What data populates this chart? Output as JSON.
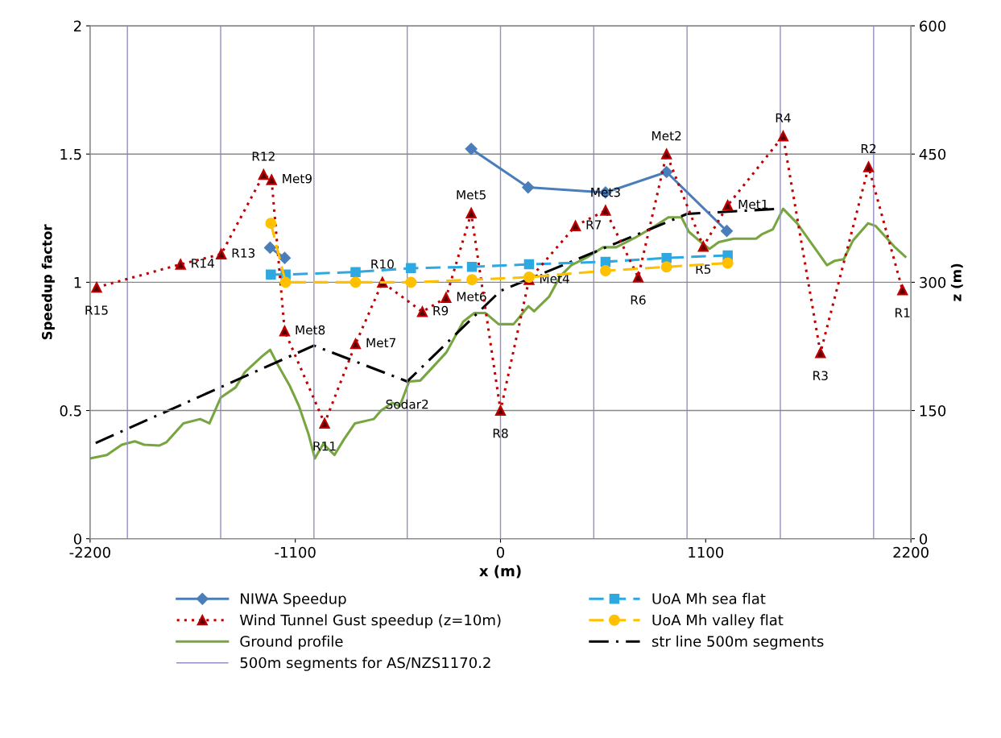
{
  "chart_data": {
    "type": "line",
    "xlabel": "x (m)",
    "ylabel": "Speedup factor",
    "y2label": "z (m)",
    "xlim": [
      -2200,
      2200
    ],
    "xticks": [
      -2200,
      -1100,
      0,
      1100,
      2200
    ],
    "ylim": [
      0,
      2
    ],
    "yticks": [
      0,
      0.5,
      1,
      1.5,
      2
    ],
    "y2lim": [
      0,
      600
    ],
    "y2ticks": [
      0,
      150,
      300,
      450,
      600
    ],
    "grid": "y",
    "legend": "bottom",
    "series": [
      {
        "name": "NIWA Speedup",
        "color": "#4a7ebb",
        "marker": "diamond",
        "line_style": "solid",
        "x": [
          -1235,
          -1157,
          -700,
          -157,
          148,
          563,
          890,
          1213
        ],
        "values": [
          1.135,
          1.095,
          null,
          1.52,
          1.37,
          1.35,
          1.43,
          1.2
        ]
      },
      {
        "name": "UoA Mh sea flat",
        "color": "#2ea8e0",
        "marker": "square",
        "line_style": "dashed",
        "x": [
          -1231,
          -1152,
          -777,
          -480,
          -153,
          153,
          563,
          890,
          1218
        ],
        "values": [
          1.03,
          1.03,
          1.04,
          1.055,
          1.06,
          1.07,
          1.08,
          1.095,
          1.105
        ]
      },
      {
        "name": "Wind Tunnel Gust speedup (z=10m)",
        "color": "#c00000",
        "marker": "triangle",
        "line_style": "dotted",
        "x": [
          -2165,
          -1715,
          -1497,
          -1270,
          -1227,
          -1157,
          -943,
          -777,
          -633,
          -419,
          -292,
          -157,
          0,
          153,
          402,
          563,
          738,
          890,
          1087,
          1218,
          1515,
          1715,
          1973,
          2155
        ],
        "values": [
          0.98,
          1.07,
          1.11,
          1.42,
          1.4,
          0.81,
          0.45,
          0.76,
          1.0,
          0.885,
          0.94,
          1.27,
          0.5,
          1.01,
          1.22,
          1.28,
          1.02,
          1.5,
          1.14,
          1.3,
          1.57,
          0.725,
          1.45,
          0.97
        ]
      },
      {
        "name": "UoA Mh valley flat",
        "color": "#ffc000",
        "marker": "circle",
        "line_style": "dashed",
        "x": [
          -1231,
          -1152,
          -777,
          -480,
          -153,
          153,
          563,
          890,
          1218
        ],
        "values": [
          1.23,
          1.0,
          1.0,
          1.0,
          1.01,
          1.02,
          1.045,
          1.06,
          1.075
        ]
      },
      {
        "name": "Ground profile",
        "color": "#77a640",
        "marker": "none",
        "line_style": "solid",
        "axis": "y2",
        "x": [
          -2200,
          -2110,
          -2030,
          -1960,
          -1910,
          -1830,
          -1790,
          -1700,
          -1610,
          -1560,
          -1500,
          -1420,
          -1370,
          -1280,
          -1235,
          -1190,
          -1130,
          -1080,
          -1030,
          -995,
          -950,
          -890,
          -840,
          -780,
          -680,
          -640,
          -580,
          -540,
          -490,
          -430,
          -290,
          -200,
          -140,
          -80,
          -10,
          70,
          150,
          180,
          260,
          320,
          380,
          470,
          550,
          620,
          720,
          830,
          900,
          970,
          1010,
          1080,
          1120,
          1170,
          1250,
          1370,
          1400,
          1460,
          1515,
          1590,
          1750,
          1790,
          1840,
          1890,
          1970,
          2010,
          2110,
          2170
        ],
        "values": [
          94,
          98,
          110,
          114,
          110,
          109,
          113,
          135,
          140,
          135,
          165,
          177,
          195,
          213,
          221,
          202,
          179,
          155,
          123,
          94,
          111,
          98,
          116,
          135,
          140,
          150,
          159,
          155,
          184,
          185,
          218,
          254,
          264,
          264,
          251,
          251,
          272,
          266,
          283,
          307,
          320,
          330,
          341,
          341,
          352,
          366,
          376,
          376,
          359,
          346,
          339,
          347,
          351,
          351,
          356,
          362,
          386,
          369,
          320,
          325,
          327,
          349,
          369,
          366,
          342,
          330
        ]
      },
      {
        "name": "str line 500m segments",
        "color": "#000000",
        "marker": "none",
        "line_style": "dashdot",
        "axis": "y2",
        "x": [
          -2170,
          -1000,
          -500,
          0,
          500,
          1000,
          1500
        ],
        "values": [
          112,
          226,
          184,
          290,
          335,
          380,
          386
        ]
      }
    ],
    "ref_lines": [
      {
        "axis": "x",
        "value": -2000,
        "label": "500m segments for AS/NZS1170.2",
        "color": "#9390c0"
      },
      {
        "axis": "x",
        "value": -1500,
        "color": "#9390c0"
      },
      {
        "axis": "x",
        "value": -1000,
        "color": "#9390c0"
      },
      {
        "axis": "x",
        "value": -500,
        "color": "#9390c0"
      },
      {
        "axis": "x",
        "value": 0,
        "color": "#9390c0"
      },
      {
        "axis": "x",
        "value": 500,
        "color": "#9390c0"
      },
      {
        "axis": "x",
        "value": 1000,
        "color": "#9390c0"
      },
      {
        "axis": "x",
        "value": 1500,
        "color": "#9390c0"
      },
      {
        "axis": "x",
        "value": 2000,
        "color": "#9390c0"
      }
    ],
    "annotations": [
      {
        "text": "R15",
        "x": -2165,
        "y": 0.98
      },
      {
        "text": "R14",
        "x": -1715,
        "y": 1.07
      },
      {
        "text": "R13",
        "x": -1497,
        "y": 1.11
      },
      {
        "text": "R12",
        "x": -1270,
        "y": 1.42
      },
      {
        "text": "Met9",
        "x": -1227,
        "y": 1.4
      },
      {
        "text": "Met8",
        "x": -1157,
        "y": 0.81
      },
      {
        "text": "Met7",
        "x": -777,
        "y": 0.76
      },
      {
        "text": "R11",
        "x": -943,
        "y": 0.45
      },
      {
        "text": "R8",
        "x": 0,
        "y": 0.5
      },
      {
        "text": "R10",
        "x": -633,
        "y": 1.0
      },
      {
        "text": "Met6",
        "x": -292,
        "y": 0.94
      },
      {
        "text": "R9",
        "x": -419,
        "y": 0.885
      },
      {
        "text": "Sodar2",
        "x": -500,
        "y": 0.6133
      },
      {
        "text": "Met5",
        "x": -157,
        "y": 1.27
      },
      {
        "text": "Met4",
        "x": 153,
        "y": 1.01
      },
      {
        "text": "R7",
        "x": 402,
        "y": 1.22
      },
      {
        "text": "Met3",
        "x": 563,
        "y": 1.28
      },
      {
        "text": "R6",
        "x": 738,
        "y": 1.02
      },
      {
        "text": "Met2",
        "x": 890,
        "y": 1.5
      },
      {
        "text": "Met1",
        "x": 1218,
        "y": 1.3
      },
      {
        "text": "R5",
        "x": 1087,
        "y": 1.14
      },
      {
        "text": "R4",
        "x": 1515,
        "y": 1.57
      },
      {
        "text": "R2",
        "x": 1973,
        "y": 1.45
      },
      {
        "text": "R3",
        "x": 1715,
        "y": 0.725
      },
      {
        "text": "R1",
        "x": 2155,
        "y": 0.97
      }
    ]
  }
}
